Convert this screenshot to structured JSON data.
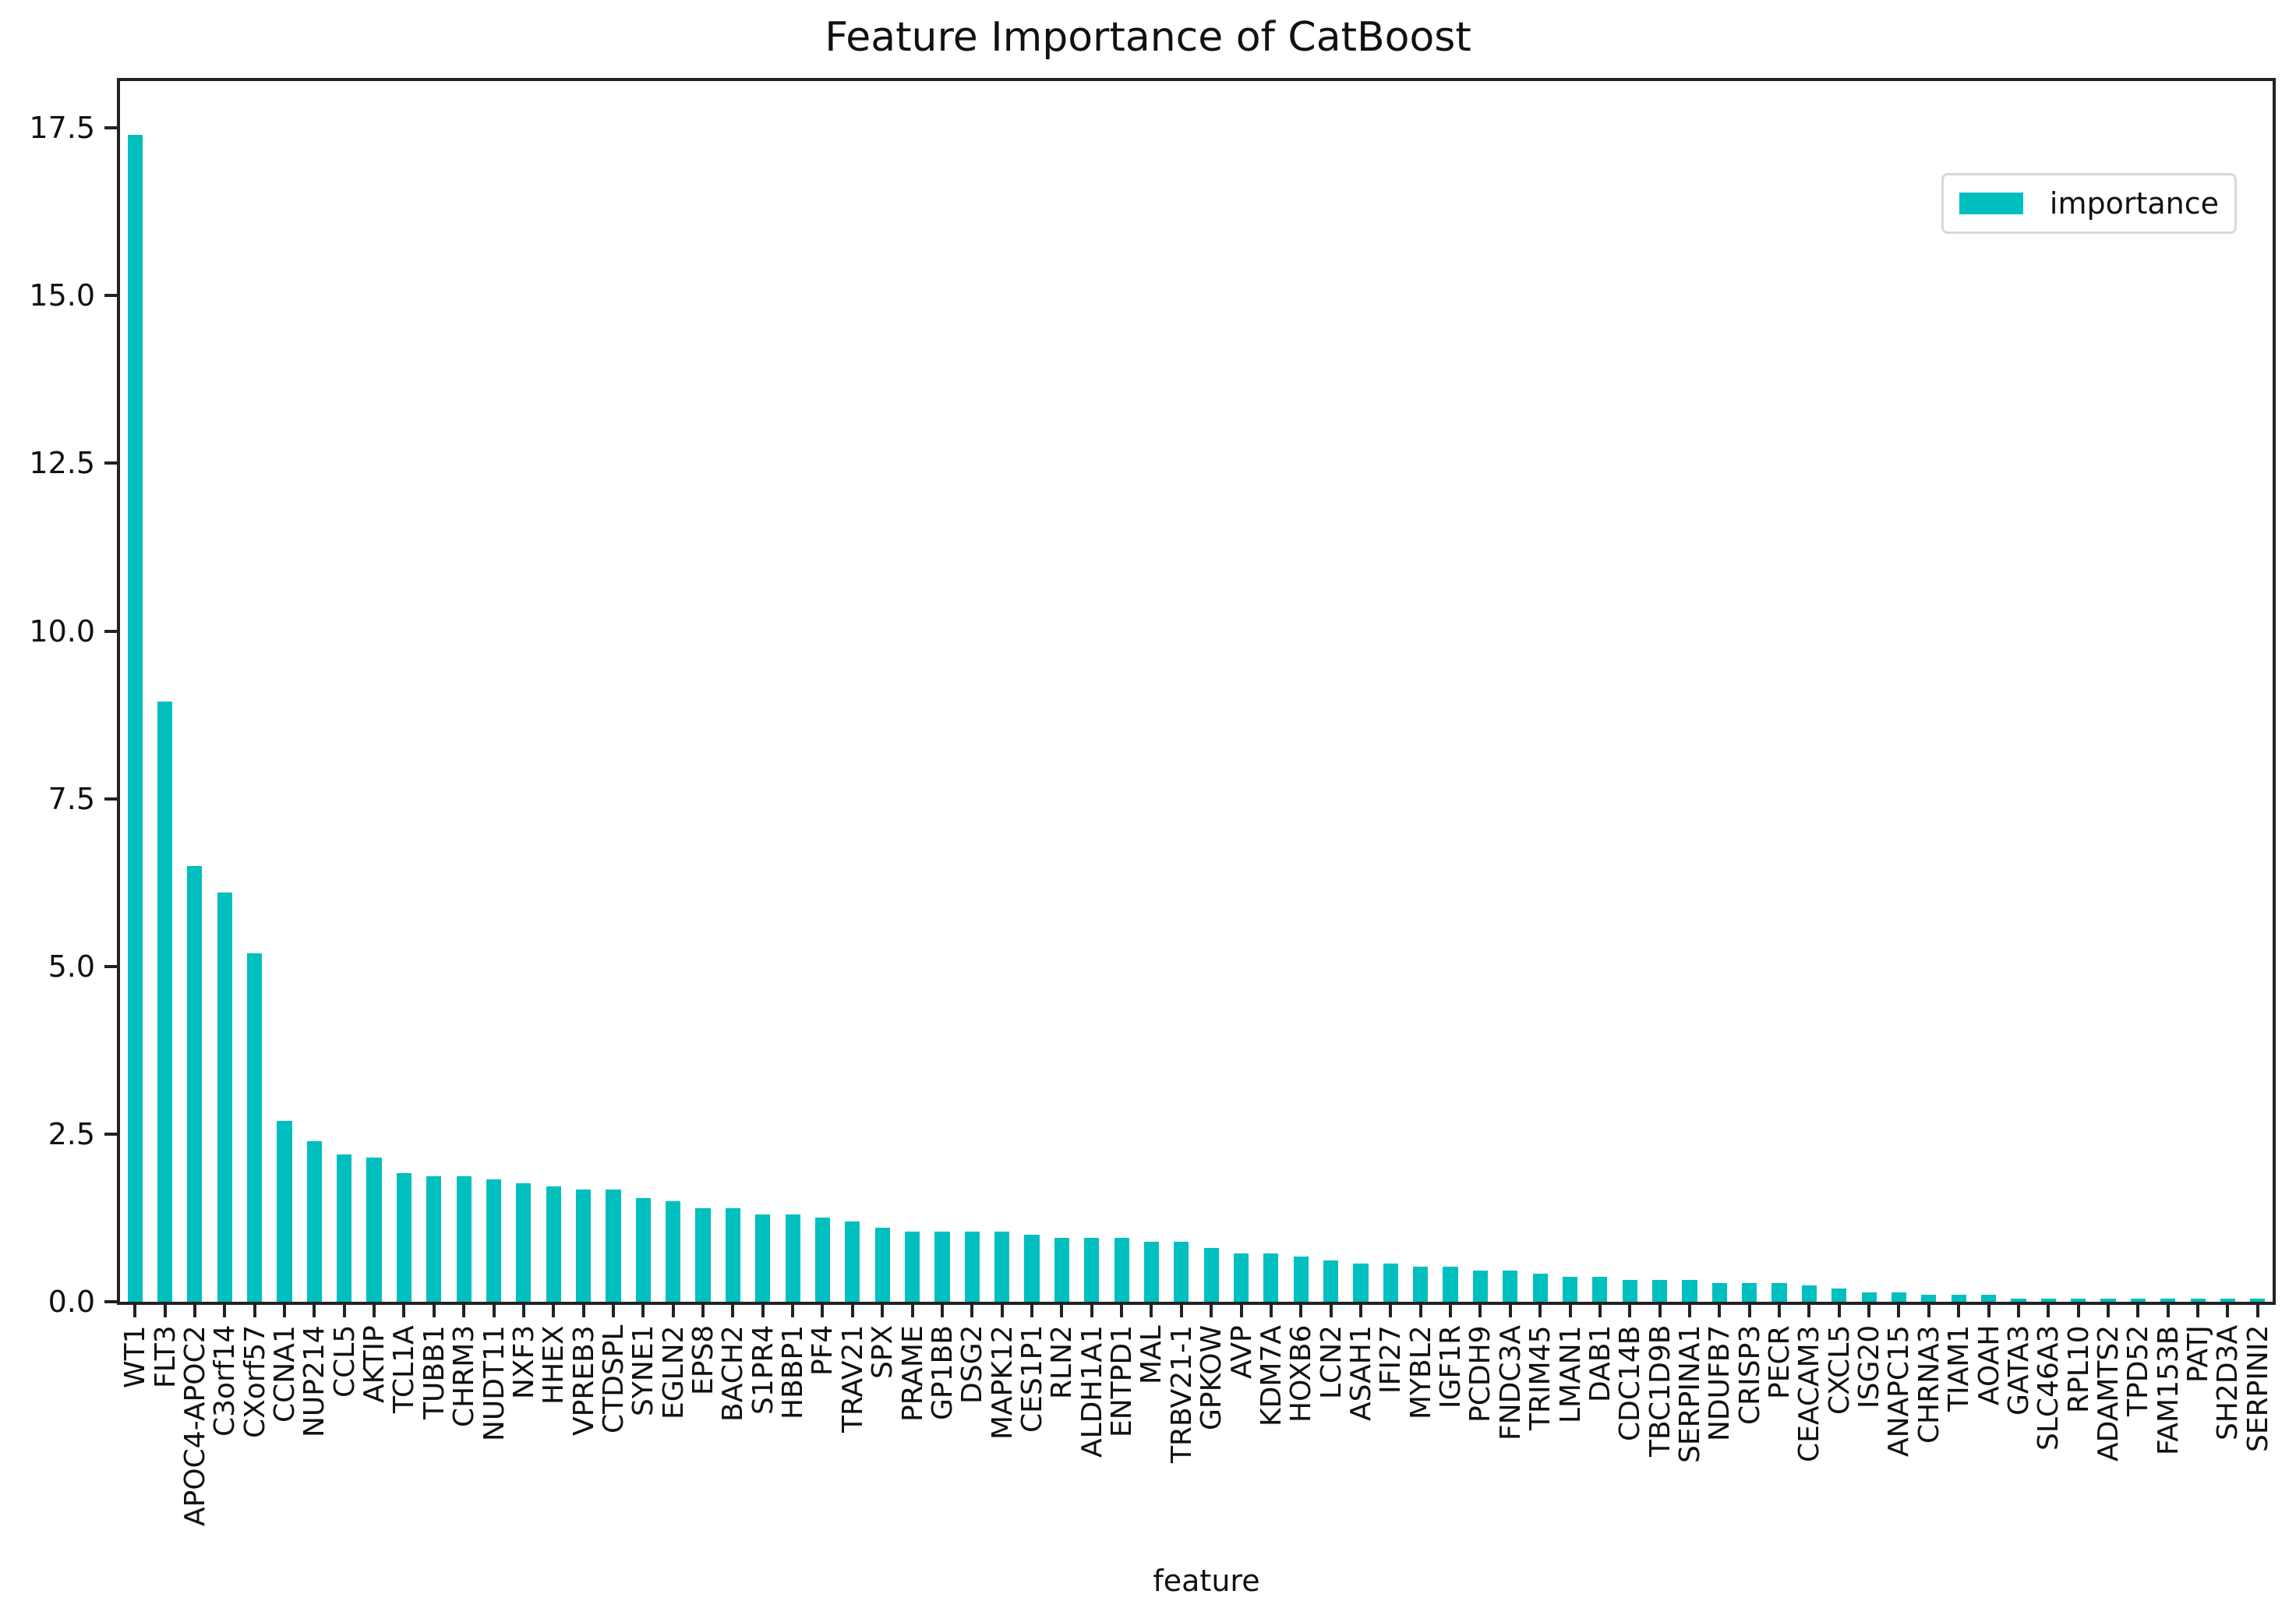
{
  "chart_data": {
    "type": "bar",
    "title": "Feature Importance of CatBoost",
    "xlabel": "feature",
    "ylabel": "",
    "ylim": [
      0,
      18.2
    ],
    "yticks": [
      0.0,
      2.5,
      5.0,
      7.5,
      10.0,
      12.5,
      15.0,
      17.5
    ],
    "ytick_labels": [
      "0.0",
      "2.5",
      "5.0",
      "7.5",
      "10.0",
      "12.5",
      "15.0",
      "17.5"
    ],
    "grid": false,
    "legend_position": "upper right",
    "color": "#00BFBF",
    "categories": [
      "WT1",
      "FLT3",
      "APOC4-APOC2",
      "C3orf14",
      "CXorf57",
      "CCNA1",
      "NUP214",
      "CCL5",
      "AKTIP",
      "TCL1A",
      "TUBB1",
      "CHRM3",
      "NUDT11",
      "NXF3",
      "HHEX",
      "VPREB3",
      "CTDSPL",
      "SYNE1",
      "EGLN2",
      "EPS8",
      "BACH2",
      "S1PR4",
      "HBBP1",
      "PF4",
      "TRAV21",
      "SPX",
      "PRAME",
      "GP1BB",
      "DSG2",
      "MAPK12",
      "CES1P1",
      "RLN2",
      "ALDH1A1",
      "ENTPD1",
      "MAL",
      "TRBV21-1",
      "GPKOW",
      "AVP",
      "KDM7A",
      "HOXB6",
      "LCN2",
      "ASAH1",
      "IFI27",
      "MYBL2",
      "IGF1R",
      "PCDH9",
      "FNDC3A",
      "TRIM45",
      "LMAN1",
      "DAB1",
      "CDC14B",
      "TBC1D9B",
      "SERPINA1",
      "NDUFB7",
      "CRISP3",
      "PECR",
      "CEACAM3",
      "CXCL5",
      "ISG20",
      "ANAPC15",
      "CHRNA3",
      "TIAM1",
      "AOAH",
      "GATA3",
      "SLC46A3",
      "RPL10",
      "ADAMTS2",
      "TPD52",
      "FAM153B",
      "PATJ",
      "SH2D3A",
      "SERPINI2"
    ],
    "series": [
      {
        "name": "importance",
        "values": [
          17.4,
          8.95,
          6.5,
          6.1,
          5.2,
          2.7,
          2.4,
          2.2,
          2.15,
          1.92,
          1.87,
          1.87,
          1.82,
          1.77,
          1.72,
          1.67,
          1.67,
          1.55,
          1.5,
          1.4,
          1.4,
          1.3,
          1.3,
          1.25,
          1.2,
          1.1,
          1.05,
          1.05,
          1.05,
          1.05,
          1.0,
          0.95,
          0.95,
          0.95,
          0.9,
          0.9,
          0.8,
          0.72,
          0.72,
          0.67,
          0.62,
          0.57,
          0.57,
          0.52,
          0.52,
          0.47,
          0.47,
          0.42,
          0.37,
          0.37,
          0.32,
          0.32,
          0.32,
          0.28,
          0.28,
          0.28,
          0.24,
          0.2,
          0.14,
          0.14,
          0.1,
          0.1,
          0.1,
          0.05,
          0.05,
          0.05,
          0.05,
          0.05,
          0.05,
          0.05,
          0.05,
          0.05
        ]
      }
    ]
  },
  "legend": {
    "label": "importance"
  }
}
